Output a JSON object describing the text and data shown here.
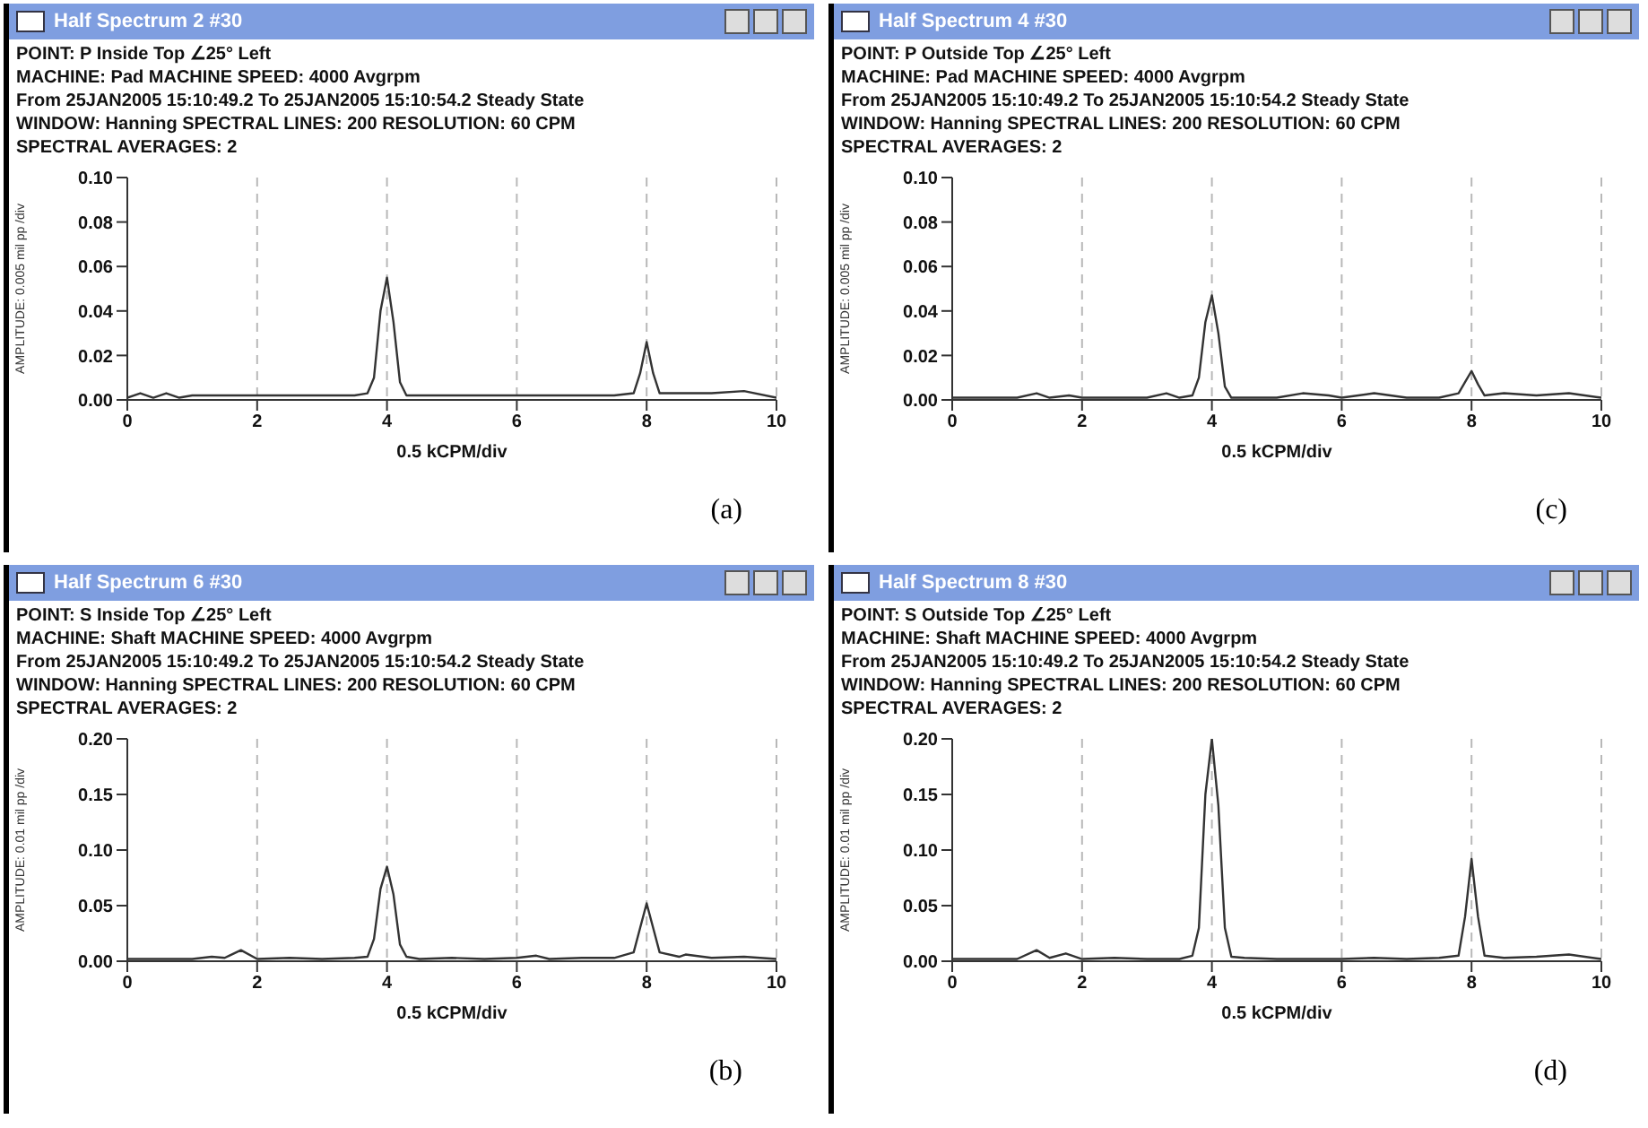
{
  "chart_data": [
    {
      "type": "line",
      "title": "Half Spectrum 2 #30",
      "xlabel": "0.5 kCPM/div",
      "ylabel": "AMPLITUDE: 0.005 mil pp /div",
      "annotations": [
        "POINT: P Inside Top  ∠25° Left",
        "MACHINE: Pad   MACHINE SPEED: 4000 Avgrpm",
        "From 25JAN2005 15:10:49.2 To 25JAN2005 15:10:54.2 Steady State",
        "WINDOW: Hanning  SPECTRAL LINES: 200  RESOLUTION: 60 CPM",
        "SPECTRAL AVERAGES: 2",
        "(a)"
      ],
      "xlim": [
        0,
        10
      ],
      "xticks": [
        0,
        2,
        4,
        6,
        8,
        10
      ],
      "ylim": [
        0,
        0.1
      ],
      "yticks": [
        {
          "value": 0,
          "label": "0.00"
        },
        {
          "value": 0.02,
          "label": "0.02"
        },
        {
          "value": 0.04,
          "label": "0.04"
        },
        {
          "value": 0.06,
          "label": "0.06"
        },
        {
          "value": 0.08,
          "label": "0.08"
        },
        {
          "value": 0.1,
          "label": "0.10"
        }
      ],
      "grid": "x",
      "line_style": "solid",
      "series": [
        {
          "color": "#333333",
          "x": [
            0,
            0.2,
            0.4,
            0.6,
            0.8,
            1,
            1.5,
            2,
            2.5,
            3,
            3.5,
            3.7,
            3.8,
            3.9,
            4,
            4.1,
            4.2,
            4.3,
            4.5,
            5,
            5.5,
            6,
            6.5,
            7,
            7.5,
            7.8,
            7.9,
            8,
            8.1,
            8.2,
            8.5,
            9,
            9.5,
            10
          ],
          "values": [
            0.001,
            0.003,
            0.001,
            0.003,
            0.001,
            0.002,
            0.002,
            0.002,
            0.002,
            0.002,
            0.002,
            0.003,
            0.01,
            0.04,
            0.055,
            0.035,
            0.008,
            0.002,
            0.002,
            0.002,
            0.002,
            0.002,
            0.002,
            0.002,
            0.002,
            0.003,
            0.012,
            0.026,
            0.012,
            0.003,
            0.003,
            0.003,
            0.004,
            0.001
          ]
        }
      ]
    },
    {
      "type": "line",
      "title": "Half Spectrum 4 #30",
      "xlabel": "0.5 kCPM/div",
      "ylabel": "AMPLITUDE: 0.005 mil pp /div",
      "annotations": [
        "POINT: P Outside Top  ∠25° Left",
        "MACHINE: Pad   MACHINE SPEED: 4000 Avgrpm",
        "From 25JAN2005 15:10:49.2 To 25JAN2005 15:10:54.2 Steady State",
        "WINDOW: Hanning  SPECTRAL LINES: 200  RESOLUTION: 60 CPM",
        "SPECTRAL AVERAGES: 2",
        "(c)"
      ],
      "xlim": [
        0,
        10
      ],
      "xticks": [
        0,
        2,
        4,
        6,
        8,
        10
      ],
      "ylim": [
        0,
        0.1
      ],
      "yticks": [
        {
          "value": 0,
          "label": "0.00"
        },
        {
          "value": 0.02,
          "label": "0.02"
        },
        {
          "value": 0.04,
          "label": "0.04"
        },
        {
          "value": 0.06,
          "label": "0.06"
        },
        {
          "value": 0.08,
          "label": "0.08"
        },
        {
          "value": 0.1,
          "label": "0.10"
        }
      ],
      "grid": "x",
      "line_style": "solid",
      "series": [
        {
          "color": "#333333",
          "x": [
            0,
            0.5,
            1,
            1.3,
            1.5,
            1.8,
            2,
            2.5,
            3,
            3.3,
            3.5,
            3.7,
            3.8,
            3.9,
            4,
            4.1,
            4.2,
            4.3,
            4.5,
            5,
            5.4,
            5.8,
            6,
            6.5,
            7,
            7.5,
            7.8,
            7.9,
            8,
            8.1,
            8.2,
            8.5,
            9,
            9.5,
            10
          ],
          "values": [
            0.001,
            0.001,
            0.001,
            0.003,
            0.001,
            0.002,
            0.001,
            0.001,
            0.001,
            0.003,
            0.001,
            0.002,
            0.01,
            0.035,
            0.047,
            0.03,
            0.006,
            0.001,
            0.001,
            0.001,
            0.003,
            0.002,
            0.001,
            0.003,
            0.001,
            0.001,
            0.003,
            0.008,
            0.013,
            0.007,
            0.002,
            0.003,
            0.002,
            0.003,
            0.001
          ]
        }
      ]
    },
    {
      "type": "line",
      "title": "Half Spectrum 6 #30",
      "xlabel": "0.5 kCPM/div",
      "ylabel": "AMPLITUDE: 0.01 mil pp /div",
      "annotations": [
        "POINT: S Inside Top  ∠25° Left",
        "MACHINE: Shaft   MACHINE SPEED: 4000 Avgrpm",
        "From 25JAN2005 15:10:49.2 To 25JAN2005 15:10:54.2 Steady State",
        "WINDOW: Hanning  SPECTRAL LINES: 200  RESOLUTION: 60 CPM",
        "SPECTRAL AVERAGES: 2",
        "(b)"
      ],
      "xlim": [
        0,
        10
      ],
      "xticks": [
        0,
        2,
        4,
        6,
        8,
        10
      ],
      "ylim": [
        0,
        0.2
      ],
      "yticks": [
        {
          "value": 0,
          "label": "0.00"
        },
        {
          "value": 0.05,
          "label": "0.05"
        },
        {
          "value": 0.1,
          "label": "0.10"
        },
        {
          "value": 0.15,
          "label": "0.15"
        },
        {
          "value": 0.2,
          "label": "0.20"
        }
      ],
      "grid": "x",
      "line_style": "solid",
      "series": [
        {
          "color": "#333333",
          "x": [
            0,
            0.5,
            1,
            1.3,
            1.5,
            1.75,
            2,
            2.5,
            3,
            3.5,
            3.7,
            3.8,
            3.9,
            4,
            4.1,
            4.2,
            4.3,
            4.5,
            5,
            5.5,
            6,
            6.3,
            6.5,
            7,
            7.5,
            7.8,
            7.9,
            8,
            8.1,
            8.2,
            8.5,
            8.6,
            9,
            9.5,
            10
          ],
          "values": [
            0.002,
            0.002,
            0.002,
            0.004,
            0.003,
            0.01,
            0.002,
            0.003,
            0.002,
            0.003,
            0.004,
            0.02,
            0.065,
            0.085,
            0.06,
            0.015,
            0.004,
            0.002,
            0.003,
            0.002,
            0.003,
            0.005,
            0.002,
            0.003,
            0.003,
            0.008,
            0.03,
            0.052,
            0.03,
            0.008,
            0.004,
            0.006,
            0.003,
            0.004,
            0.002
          ]
        }
      ]
    },
    {
      "type": "line",
      "title": "Half Spectrum 8 #30",
      "xlabel": "0.5 kCPM/div",
      "ylabel": "AMPLITUDE: 0.01 mil pp /div",
      "annotations": [
        "POINT: S Outside Top  ∠25° Left",
        "MACHINE: Shaft   MACHINE SPEED: 4000 Avgrpm",
        "From 25JAN2005 15:10:49.2 To 25JAN2005 15:10:54.2 Steady State",
        "WINDOW: Hanning  SPECTRAL LINES: 200  RESOLUTION: 60 CPM",
        "SPECTRAL AVERAGES: 2",
        "(d)"
      ],
      "xlim": [
        0,
        10
      ],
      "xticks": [
        0,
        2,
        4,
        6,
        8,
        10
      ],
      "ylim": [
        0,
        0.2
      ],
      "yticks": [
        {
          "value": 0,
          "label": "0.00"
        },
        {
          "value": 0.05,
          "label": "0.05"
        },
        {
          "value": 0.1,
          "label": "0.10"
        },
        {
          "value": 0.15,
          "label": "0.15"
        },
        {
          "value": 0.2,
          "label": "0.20"
        }
      ],
      "grid": "x",
      "line_style": "solid",
      "series": [
        {
          "color": "#333333",
          "x": [
            0,
            0.5,
            1,
            1.3,
            1.5,
            1.75,
            2,
            2.5,
            3,
            3.5,
            3.7,
            3.8,
            3.9,
            4,
            4.1,
            4.2,
            4.3,
            4.5,
            5,
            5.5,
            6,
            6.5,
            7,
            7.5,
            7.8,
            7.9,
            8,
            8.1,
            8.2,
            8.5,
            9,
            9.5,
            10
          ],
          "values": [
            0.002,
            0.002,
            0.002,
            0.01,
            0.003,
            0.007,
            0.002,
            0.003,
            0.002,
            0.002,
            0.005,
            0.03,
            0.15,
            0.2,
            0.14,
            0.03,
            0.004,
            0.003,
            0.002,
            0.002,
            0.002,
            0.003,
            0.002,
            0.003,
            0.005,
            0.04,
            0.092,
            0.04,
            0.005,
            0.003,
            0.004,
            0.006,
            0.002
          ]
        }
      ]
    }
  ]
}
